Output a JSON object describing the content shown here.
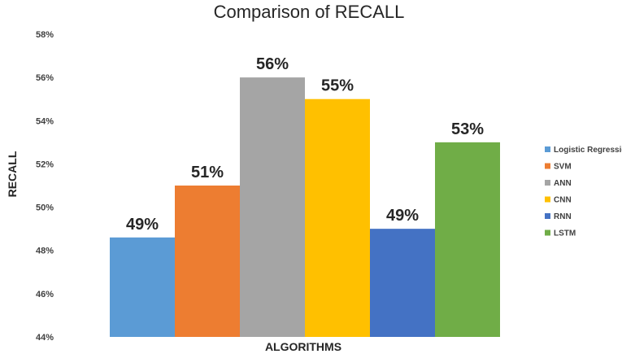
{
  "chart_data": {
    "type": "bar",
    "title": "Comparison of RECALL",
    "xlabel": "ALGORITHMS",
    "ylabel": "RECALL",
    "ylim": [
      44,
      58
    ],
    "ytick_step": 2,
    "ytick_labels": [
      "44%",
      "46%",
      "48%",
      "50%",
      "52%",
      "54%",
      "56%",
      "58%"
    ],
    "grid": false,
    "legend_position": "right",
    "series": [
      {
        "name": "Logistic Regression",
        "value": 48.6,
        "label": "49%",
        "color": "#5B9BD5"
      },
      {
        "name": "SVM",
        "value": 51.0,
        "label": "51%",
        "color": "#ED7D31"
      },
      {
        "name": "ANN",
        "value": 56.0,
        "label": "56%",
        "color": "#A5A5A5"
      },
      {
        "name": "CNN",
        "value": 55.0,
        "label": "55%",
        "color": "#FFC000"
      },
      {
        "name": "RNN",
        "value": 49.0,
        "label": "49%",
        "color": "#4472C4"
      },
      {
        "name": "LSTM",
        "value": 53.0,
        "label": "53%",
        "color": "#70AD47"
      }
    ]
  }
}
